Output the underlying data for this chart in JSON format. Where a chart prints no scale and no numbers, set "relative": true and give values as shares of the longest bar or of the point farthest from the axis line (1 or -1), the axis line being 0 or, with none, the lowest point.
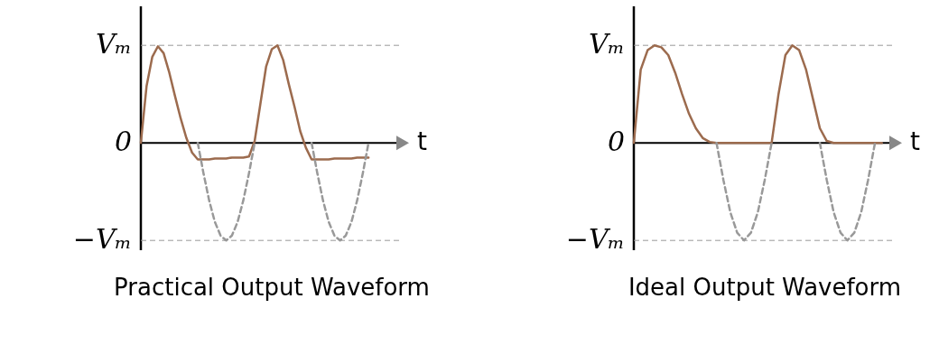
{
  "chart_data": [
    {
      "type": "line",
      "title": "Practical Output Waveform",
      "xlabel": "t",
      "relative": true,
      "marker": "none",
      "categories": [
        null,
        null,
        null,
        null,
        null,
        null,
        null,
        null,
        null,
        null,
        null,
        null,
        null,
        null,
        null,
        null,
        null,
        null,
        null,
        null,
        null,
        null,
        null,
        null,
        null,
        null,
        null,
        null,
        null,
        null,
        null,
        null,
        null,
        null,
        null,
        null,
        null,
        null,
        null,
        null,
        null,
        null,
        null,
        null,
        null,
        null,
        null
      ],
      "ref_lines": [
        {
          "axis": "y",
          "value": 1,
          "label": "Vₘ",
          "color": "#999999",
          "line_style": "dashed"
        },
        {
          "axis": "y",
          "value": -1,
          "label": "−Vₘ",
          "color": "#999999",
          "line_style": "dashed"
        },
        {
          "axis": "y",
          "value": 0,
          "label": "0",
          "color": "#000000",
          "line_style": "solid"
        }
      ],
      "series": [
        {
          "color": "#9c6b4e",
          "line_style": "solid",
          "values": [
            0,
            0.58,
            0.88,
            0.99,
            0.92,
            0.72,
            0.48,
            0.25,
            0.05,
            -0.1,
            -0.17,
            -0.17,
            -0.17,
            -0.16,
            -0.16,
            -0.16,
            -0.15,
            -0.15,
            -0.15,
            -0.14,
            0.02,
            0.4,
            0.78,
            0.96,
            1.0,
            0.85,
            0.6,
            0.37,
            0.12,
            -0.05,
            -0.17,
            -0.17,
            -0.17,
            -0.17,
            -0.16,
            -0.16,
            -0.16,
            -0.16,
            -0.15,
            -0.15,
            -0.15,
            null,
            null,
            null,
            null,
            null,
            null
          ]
        },
        {
          "color": "#999999",
          "line_style": "dashed",
          "values": [
            null,
            null,
            null,
            null,
            null,
            null,
            null,
            null,
            null,
            null,
            0,
            -0.31,
            -0.59,
            -0.81,
            -0.95,
            -1,
            -0.95,
            -0.81,
            -0.59,
            -0.31,
            0,
            null,
            null,
            null,
            null,
            null,
            null,
            null,
            null,
            null,
            0,
            -0.31,
            -0.59,
            -0.81,
            -0.95,
            -1,
            -0.95,
            -0.81,
            -0.59,
            -0.31,
            0,
            null,
            null,
            null,
            null,
            null,
            null
          ]
        }
      ]
    },
    {
      "type": "line",
      "title": "Ideal Output Waveform",
      "xlabel": "t",
      "relative": true,
      "marker": "none",
      "categories": [
        null,
        null,
        null,
        null,
        null,
        null,
        null,
        null,
        null,
        null,
        null,
        null,
        null,
        null,
        null,
        null,
        null,
        null,
        null,
        null,
        null,
        null,
        null,
        null,
        null,
        null,
        null,
        null,
        null,
        null,
        null,
        null,
        null,
        null,
        null,
        null,
        null,
        null,
        null
      ],
      "ref_lines": [
        {
          "axis": "y",
          "value": 1,
          "label": "Vₘ",
          "color": "#999999",
          "line_style": "dashed"
        },
        {
          "axis": "y",
          "value": -1,
          "label": "−Vₘ",
          "color": "#999999",
          "line_style": "dashed"
        },
        {
          "axis": "y",
          "value": 0,
          "label": "0",
          "color": "#000000",
          "line_style": "solid"
        }
      ],
      "series": [
        {
          "color": "#9c6b4e",
          "line_style": "solid",
          "values": [
            0,
            0.75,
            0.95,
            1.0,
            0.98,
            0.9,
            0.72,
            0.5,
            0.3,
            0.15,
            0.05,
            0.01,
            0,
            0,
            0,
            0,
            0,
            0,
            0,
            0,
            0,
            0.5,
            0.9,
            1.0,
            0.95,
            0.75,
            0.45,
            0.15,
            0.02,
            0,
            0,
            0,
            0,
            0,
            0,
            0,
            0,
            null,
            null
          ]
        },
        {
          "color": "#999999",
          "line_style": "dashed",
          "values": [
            null,
            null,
            null,
            null,
            null,
            null,
            null,
            null,
            null,
            null,
            null,
            null,
            0,
            -0.38,
            -0.71,
            -0.92,
            -1,
            -0.92,
            -0.71,
            -0.38,
            0,
            null,
            null,
            null,
            null,
            null,
            null,
            0,
            -0.38,
            -0.71,
            -0.92,
            -1,
            -0.92,
            -0.71,
            -0.38,
            0,
            null,
            null,
            null
          ]
        }
      ]
    }
  ]
}
